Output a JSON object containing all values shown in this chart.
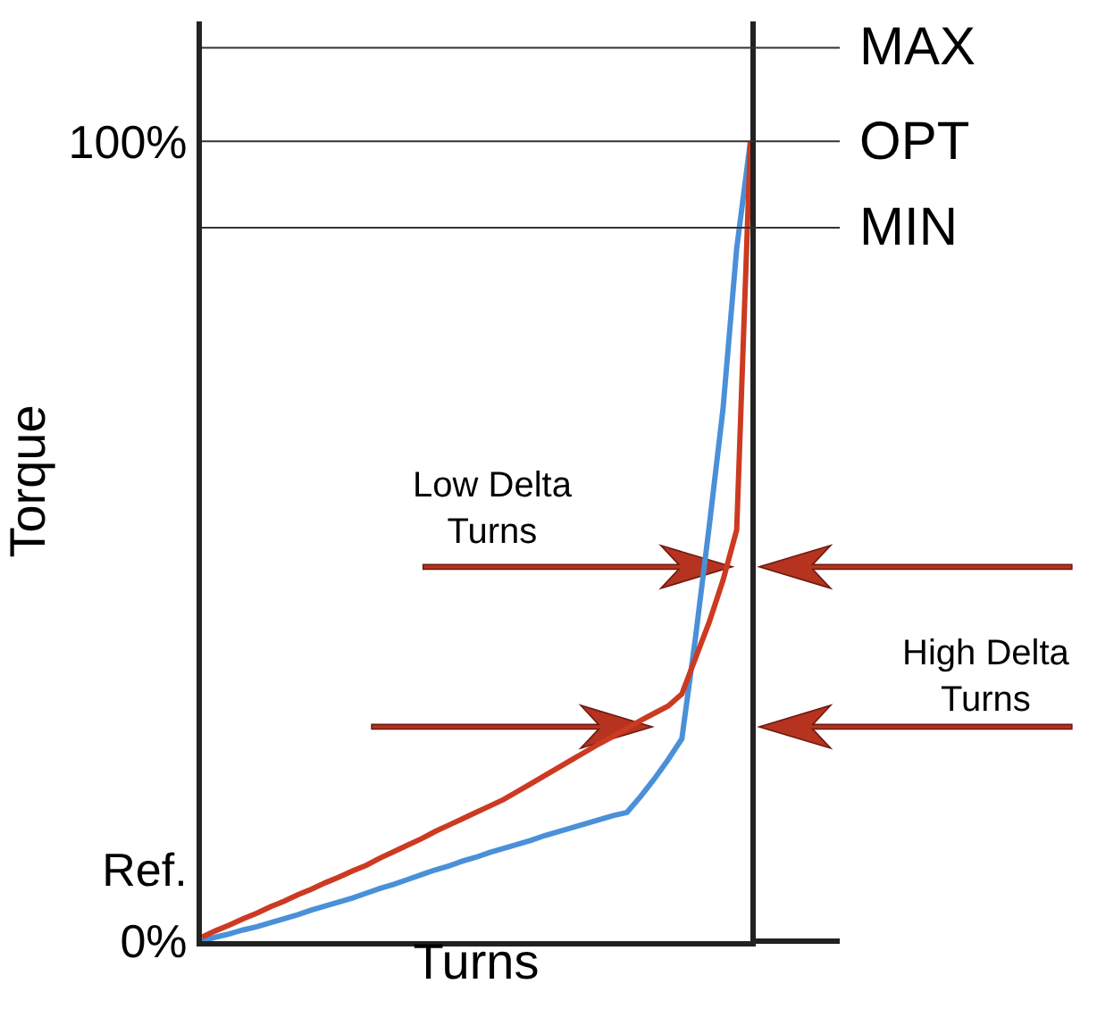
{
  "chart_data": {
    "type": "line",
    "xlabel": "Turns",
    "ylabel": "Torque",
    "categories": [
      null,
      null,
      null,
      null,
      null,
      null,
      null,
      null,
      null,
      null,
      null,
      null,
      null,
      null,
      null,
      null,
      null,
      null,
      null,
      null,
      null,
      null,
      null,
      null,
      null,
      null,
      null,
      null,
      null,
      null,
      null,
      null,
      null,
      null,
      null,
      null,
      null,
      null,
      null,
      null,
      null
    ],
    "series": [
      {
        "color": "#4a90d9",
        "values": [
          0,
          0.5,
          0.9,
          1.4,
          1.8,
          2.3,
          2.8,
          3.3,
          3.9,
          4.4,
          4.9,
          5.4,
          6.0,
          6.6,
          7.1,
          7.7,
          8.3,
          8.9,
          9.4,
          10.0,
          10.5,
          11.1,
          11.6,
          12.1,
          12.6,
          13.2,
          13.7,
          14.2,
          14.7,
          15.2,
          15.7,
          16.1,
          18.1,
          20.3,
          22.7,
          25.3,
          38.0,
          51.9,
          66.5,
          86.6,
          100
        ]
      },
      {
        "color": "#cc3a22",
        "values": [
          0.5,
          1.3,
          2.0,
          2.8,
          3.5,
          4.3,
          5.0,
          5.8,
          6.5,
          7.3,
          8.0,
          8.8,
          9.5,
          10.4,
          11.2,
          12.0,
          12.8,
          13.7,
          14.5,
          15.3,
          16.1,
          16.9,
          17.7,
          18.7,
          19.7,
          20.7,
          21.7,
          22.7,
          23.7,
          24.7,
          25.6,
          26.6,
          27.6,
          28.5,
          29.4,
          30.9,
          35.4,
          39.9,
          45.1,
          51.4,
          100
        ]
      }
    ],
    "ylim": [
      0,
      115
    ],
    "tick_labels": "y",
    "yticks": [
      {
        "value": 0,
        "label": "0%"
      },
      {
        "value": 9,
        "label": "Ref."
      },
      {
        "value": 100,
        "label": "100%"
      }
    ],
    "ref_lines": [
      {
        "axis": "y",
        "value": 111.7,
        "label": "MAX",
        "color": "#333333"
      },
      {
        "axis": "y",
        "value": 100,
        "label": "OPT",
        "color": "#333333"
      },
      {
        "axis": "y",
        "value": 89.2,
        "label": "MIN",
        "color": "#333333"
      }
    ],
    "annotations": [
      "Low Delta\nTurns",
      "High Delta\nTurns"
    ],
    "line_style": "solid"
  }
}
